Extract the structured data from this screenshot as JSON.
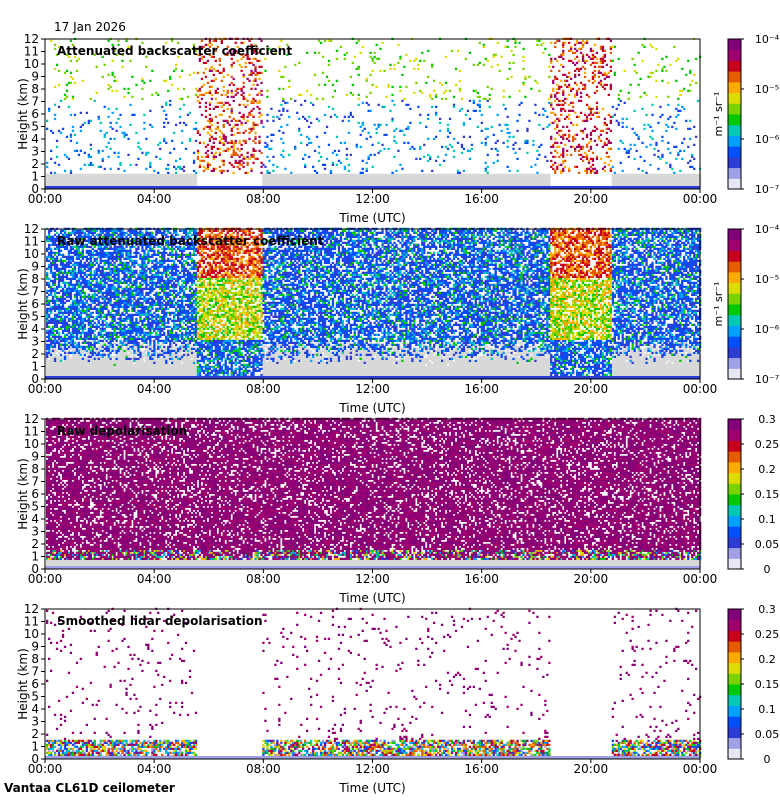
{
  "header": {
    "date": "17 Jan 2026"
  },
  "footer": {
    "site_instrument": "Vantaa CL61D ceilometer"
  },
  "colors": {
    "background_grey": "#d8d8d8",
    "colormap": [
      "#e6e6f5",
      "#a0a0e6",
      "#2d3cd2",
      "#0050ff",
      "#00a0ff",
      "#00c8b4",
      "#00c800",
      "#7ad200",
      "#dcdc00",
      "#ffaa00",
      "#e65a00",
      "#c8001e",
      "#a0006e",
      "#820078"
    ]
  },
  "chart_data": [
    {
      "type": "heatmap",
      "title": "Attenuated backscatter coefficient",
      "xlabel": "Time (UTC)",
      "ylabel": "Height (km)",
      "x_ticks": [
        "00:00",
        "04:00",
        "08:00",
        "12:00",
        "16:00",
        "20:00",
        "00:00"
      ],
      "x_range_hours": [
        0,
        24
      ],
      "y_ticks": [
        "0",
        "1",
        "2",
        "3",
        "4",
        "5",
        "6",
        "7",
        "8",
        "9",
        "10",
        "11",
        "12"
      ],
      "ylim_km": [
        0,
        12
      ],
      "colorbar": {
        "scale": "log",
        "range": [
          1e-07,
          0.0001
        ],
        "tick_labels": [
          "10⁻⁷",
          "10⁻⁶",
          "10⁻⁵",
          "10⁻⁴"
        ],
        "unit": "m⁻¹ sr⁻¹"
      },
      "precipitation_periods_hours": [
        [
          5.5,
          7.9
        ],
        [
          18.5,
          20.7
        ]
      ]
    },
    {
      "type": "heatmap",
      "title": "Raw attenuated backscatter coefficient",
      "xlabel": "Time (UTC)",
      "ylabel": "Height (km)",
      "x_ticks": [
        "00:00",
        "04:00",
        "08:00",
        "12:00",
        "16:00",
        "20:00",
        "00:00"
      ],
      "x_range_hours": [
        0,
        24
      ],
      "y_ticks": [
        "0",
        "1",
        "2",
        "3",
        "4",
        "5",
        "6",
        "7",
        "8",
        "9",
        "10",
        "11",
        "12"
      ],
      "ylim_km": [
        0,
        12
      ],
      "colorbar": {
        "scale": "log",
        "range": [
          1e-07,
          0.0001
        ],
        "tick_labels": [
          "10⁻⁷",
          "10⁻⁶",
          "10⁻⁵",
          "10⁻⁴"
        ],
        "unit": "m⁻¹ sr⁻¹"
      },
      "precipitation_periods_hours": [
        [
          5.5,
          7.9
        ],
        [
          18.5,
          20.7
        ]
      ]
    },
    {
      "type": "heatmap",
      "title": "Raw depolarisation",
      "xlabel": "Time (UTC)",
      "ylabel": "Height (km)",
      "x_ticks": [
        "00:00",
        "04:00",
        "08:00",
        "12:00",
        "16:00",
        "20:00",
        "00:00"
      ],
      "x_range_hours": [
        0,
        24
      ],
      "y_ticks": [
        "0",
        "1",
        "2",
        "3",
        "4",
        "5",
        "6",
        "7",
        "8",
        "9",
        "10",
        "11",
        "12"
      ],
      "ylim_km": [
        0,
        12
      ],
      "colorbar": {
        "scale": "linear",
        "range": [
          0,
          0.3
        ],
        "tick_labels": [
          "0",
          "0.05",
          "0.1",
          "0.15",
          "0.2",
          "0.25",
          "0.3"
        ],
        "unit": ""
      }
    },
    {
      "type": "heatmap",
      "title": "Smoothed lidar depolarisation",
      "xlabel": "Time (UTC)",
      "ylabel": "Height (km)",
      "x_ticks": [
        "00:00",
        "04:00",
        "08:00",
        "12:00",
        "16:00",
        "20:00",
        "00:00"
      ],
      "x_range_hours": [
        0,
        24
      ],
      "y_ticks": [
        "0",
        "1",
        "2",
        "3",
        "4",
        "5",
        "6",
        "7",
        "8",
        "9",
        "10",
        "11",
        "12"
      ],
      "ylim_km": [
        0,
        12
      ],
      "colorbar": {
        "scale": "linear",
        "range": [
          0,
          0.3
        ],
        "tick_labels": [
          "0",
          "0.05",
          "0.1",
          "0.15",
          "0.2",
          "0.25",
          "0.3"
        ],
        "unit": ""
      },
      "precipitation_periods_hours": [
        [
          5.5,
          7.9
        ],
        [
          18.5,
          20.7
        ]
      ]
    }
  ]
}
